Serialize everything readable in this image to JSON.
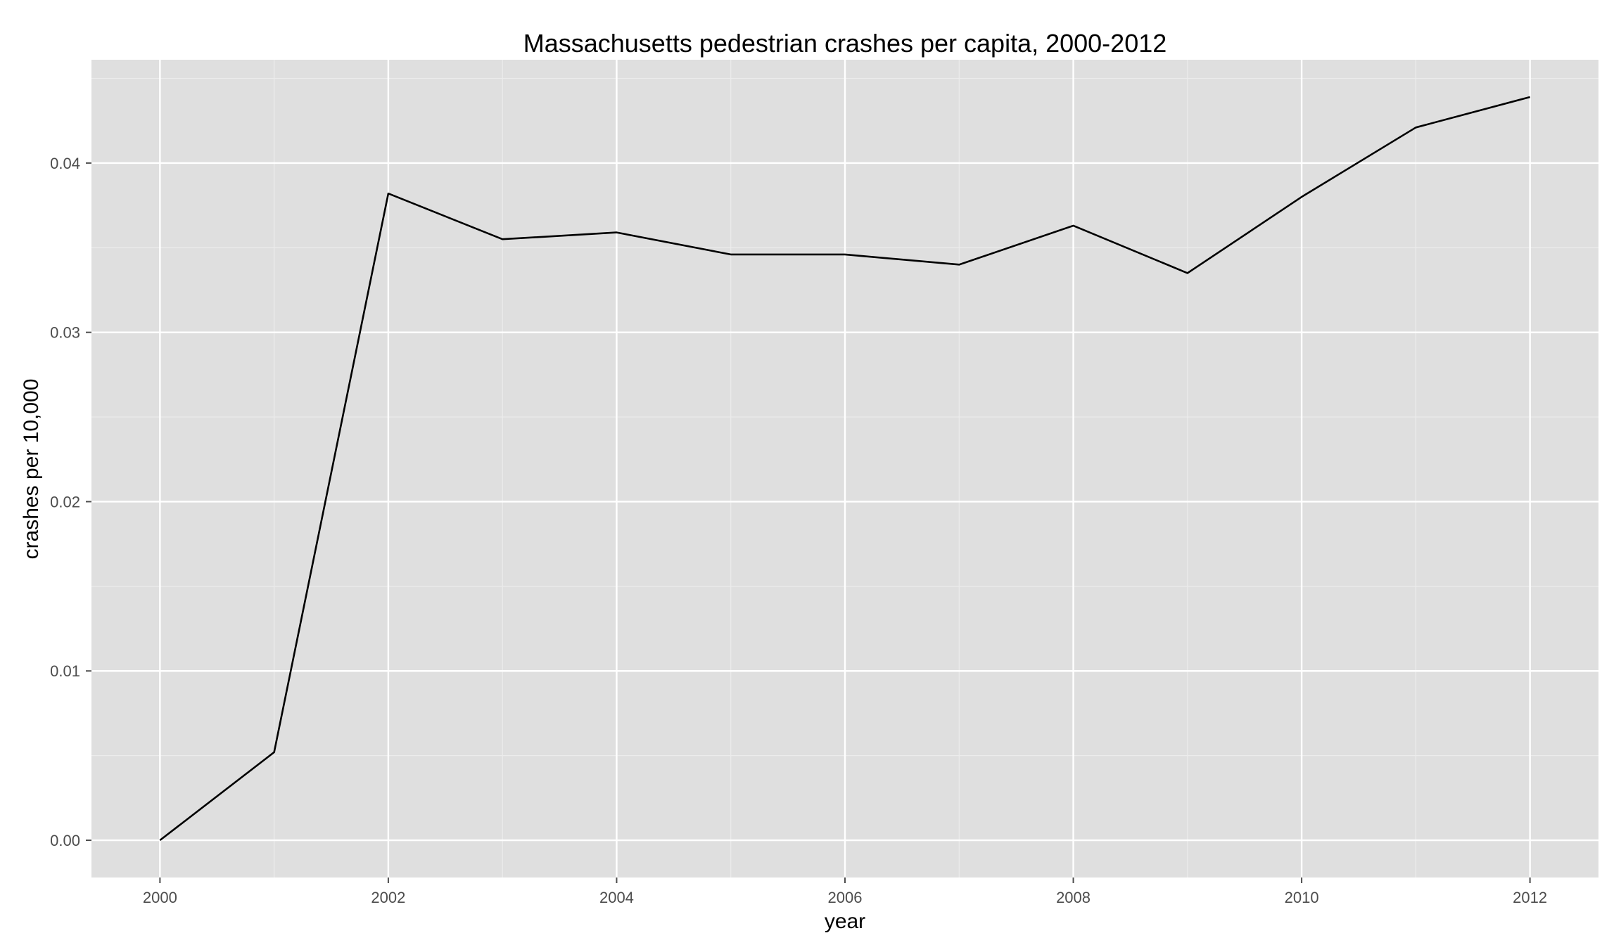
{
  "chart_data": {
    "type": "line",
    "title": "Massachusetts pedestrian crashes per capita, 2000-2012",
    "xlabel": "year",
    "ylabel": "crashes per 10,000",
    "x": [
      2000,
      2001,
      2002,
      2003,
      2004,
      2005,
      2006,
      2007,
      2008,
      2009,
      2010,
      2011,
      2012
    ],
    "series": [
      {
        "values": [
          0.0,
          0.0052,
          0.0382,
          0.0355,
          0.0359,
          0.0346,
          0.0346,
          0.034,
          0.0363,
          0.0335,
          0.038,
          0.0421,
          0.0439
        ]
      }
    ],
    "xlim": [
      1999.4,
      2012.6
    ],
    "ylim": [
      -0.0022,
      0.0461
    ],
    "x_ticks": [
      2000,
      2002,
      2004,
      2006,
      2008,
      2010,
      2012
    ],
    "x_tick_labels": [
      "2000",
      "2002",
      "2004",
      "2006",
      "2008",
      "2010",
      "2012"
    ],
    "y_ticks": [
      0.0,
      0.01,
      0.02,
      0.03,
      0.04
    ],
    "y_tick_labels": [
      "0.00",
      "0.01",
      "0.02",
      "0.03",
      "0.04"
    ],
    "grid": true,
    "legend": "none",
    "colors": {
      "panel_background": "#dfdfdf",
      "major_grid": "#ffffff",
      "minor_grid": "#ececec",
      "line": "#000000",
      "tick_text": "#4d4d4d",
      "tick_mark": "#4d4d4d"
    }
  }
}
